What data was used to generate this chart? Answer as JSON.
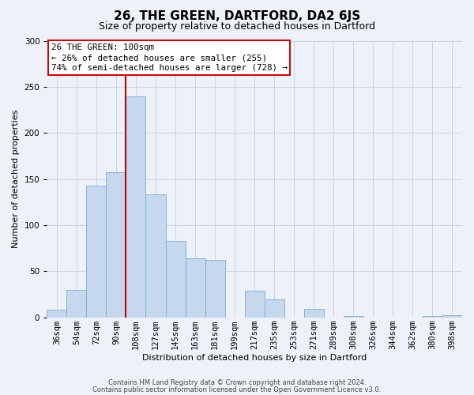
{
  "title": "26, THE GREEN, DARTFORD, DA2 6JS",
  "subtitle": "Size of property relative to detached houses in Dartford",
  "xlabel": "Distribution of detached houses by size in Dartford",
  "ylabel": "Number of detached properties",
  "bar_labels": [
    "36sqm",
    "54sqm",
    "72sqm",
    "90sqm",
    "108sqm",
    "127sqm",
    "145sqm",
    "163sqm",
    "181sqm",
    "199sqm",
    "217sqm",
    "235sqm",
    "253sqm",
    "271sqm",
    "289sqm",
    "308sqm",
    "326sqm",
    "344sqm",
    "362sqm",
    "380sqm",
    "398sqm"
  ],
  "bar_values": [
    8,
    30,
    143,
    157,
    240,
    133,
    83,
    64,
    62,
    0,
    29,
    19,
    0,
    9,
    0,
    1,
    0,
    0,
    0,
    1,
    2
  ],
  "bar_color": "#c5d8ed",
  "bar_edge_color": "#7aaed6",
  "vline_color": "#cc0000",
  "vline_index": 3.5,
  "annotation_title": "26 THE GREEN: 100sqm",
  "annotation_line1": "← 26% of detached houses are smaller (255)",
  "annotation_line2": "74% of semi-detached houses are larger (728) →",
  "annotation_box_color": "#ffffff",
  "annotation_box_edge": "#cc0000",
  "ylim": [
    0,
    300
  ],
  "yticks": [
    0,
    50,
    100,
    150,
    200,
    250,
    300
  ],
  "footer1": "Contains HM Land Registry data © Crown copyright and database right 2024.",
  "footer2": "Contains public sector information licensed under the Open Government Licence v3.0.",
  "bg_color": "#eef2f8",
  "plot_bg_color": "#eef2f8",
  "title_fontsize": 11,
  "subtitle_fontsize": 9,
  "axis_label_fontsize": 8,
  "tick_fontsize": 7.5,
  "footer_fontsize": 6
}
